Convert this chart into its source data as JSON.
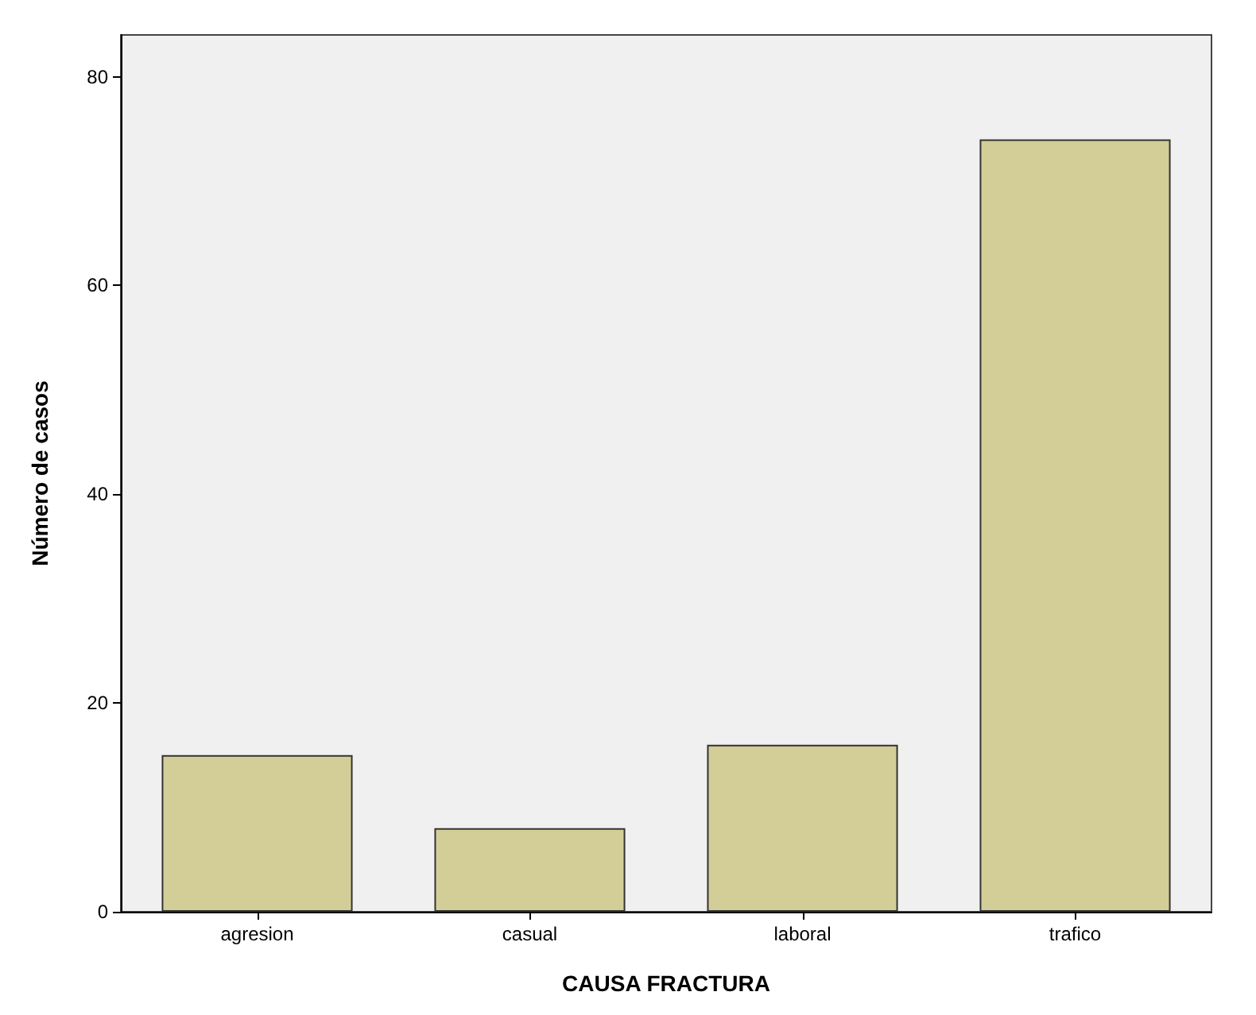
{
  "chart_data": {
    "type": "bar",
    "xlabel": "CAUSA FRACTURA",
    "ylabel": "Número de casos",
    "categories": [
      "agresion",
      "casual",
      "laboral",
      "trafico"
    ],
    "values": [
      15,
      8,
      16,
      74
    ],
    "color": "#d3ce97",
    "ylim": [
      0,
      84
    ],
    "yticks": [
      0,
      20,
      40,
      60,
      80
    ],
    "grid": false
  }
}
